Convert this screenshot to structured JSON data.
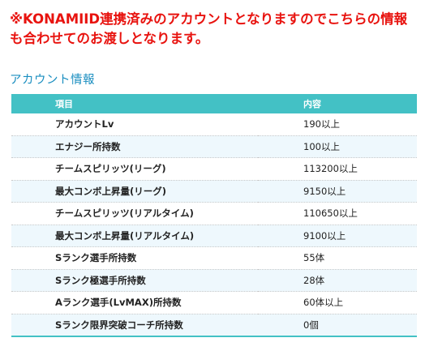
{
  "notice": "※KONAMIID連携済みのアカウントとなりますのでこちらの情報も合わせてのお渡しとなります。",
  "section_title": "アカウント情報",
  "table": {
    "headers": [
      "項目",
      "内容"
    ],
    "rows": [
      {
        "item": "アカウントLv",
        "value": "190以上"
      },
      {
        "item": "エナジー所持数",
        "value": "100以上"
      },
      {
        "item": "チームスピリッツ(リーグ)",
        "value": "113200以上"
      },
      {
        "item": "最大コンボ上昇量(リーグ)",
        "value": "9150以上"
      },
      {
        "item": "チームスピリッツ(リアルタイム)",
        "value": "110650以上"
      },
      {
        "item": "最大コンボ上昇量(リアルタイム)",
        "value": "9100以上"
      },
      {
        "item": "Sランク選手所持数",
        "value": "55体"
      },
      {
        "item": "Sランク極選手所持数",
        "value": "28体"
      },
      {
        "item": "Aランク選手(LvMAX)所持数",
        "value": "60体以上"
      },
      {
        "item": "Sランク限界突破コーチ所持数",
        "value": "0個"
      }
    ]
  },
  "colors": {
    "notice": "#e8130f",
    "title": "#1a8ec0",
    "header_bg": "#43c1c5",
    "stripe": "#eef8fd"
  }
}
